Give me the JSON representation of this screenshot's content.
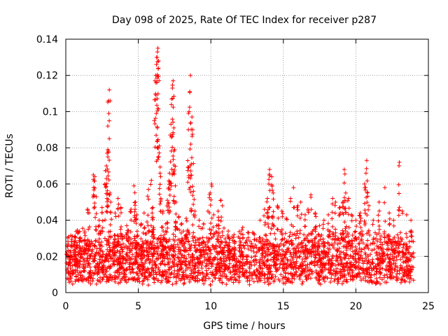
{
  "chart_data": {
    "type": "scatter",
    "title": "Day 098 of 2025, Rate Of TEC Index for receiver p287",
    "xlabel": "GPS time / hours",
    "ylabel": "ROTI / TECUs",
    "xlim": [
      0,
      25
    ],
    "ylim": [
      0,
      0.14
    ],
    "xticks": [
      0,
      5,
      10,
      15,
      20,
      25
    ],
    "xtick_labels": [
      "0",
      "5",
      "10",
      "15",
      "20",
      "25"
    ],
    "yticks": [
      0,
      0.02,
      0.04,
      0.06,
      0.08,
      0.1,
      0.12,
      0.14
    ],
    "ytick_labels": [
      "0",
      "0.02",
      "0.04",
      "0.06",
      "0.08",
      "0.1",
      "0.12",
      "0.14"
    ],
    "grid": true,
    "marker": "+",
    "color": "#ff0000",
    "data_range_hours": [
      0,
      24
    ],
    "series": [
      {
        "name": "ROTI",
        "baseline_band": [
          0.004,
          0.024
        ],
        "points": [
          [
            0.3,
            0.022
          ],
          [
            0.6,
            0.028
          ],
          [
            1.0,
            0.03
          ],
          [
            1.3,
            0.034
          ],
          [
            1.5,
            0.046
          ],
          [
            1.6,
            0.044
          ],
          [
            1.9,
            0.065
          ],
          [
            2.0,
            0.064
          ],
          [
            2.1,
            0.053
          ],
          [
            2.3,
            0.04
          ],
          [
            2.5,
            0.047
          ],
          [
            2.7,
            0.06
          ],
          [
            2.8,
            0.07
          ],
          [
            2.8,
            0.063
          ],
          [
            2.85,
            0.077
          ],
          [
            2.9,
            0.079
          ],
          [
            2.9,
            0.092
          ],
          [
            2.95,
            0.106
          ],
          [
            3.0,
            0.112
          ],
          [
            3.05,
            0.055
          ],
          [
            3.1,
            0.05
          ],
          [
            3.4,
            0.044
          ],
          [
            3.6,
            0.052
          ],
          [
            3.8,
            0.047
          ],
          [
            4.2,
            0.037
          ],
          [
            4.5,
            0.046
          ],
          [
            4.7,
            0.059
          ],
          [
            4.8,
            0.05
          ],
          [
            4.9,
            0.043
          ],
          [
            5.2,
            0.038
          ],
          [
            5.4,
            0.044
          ],
          [
            5.6,
            0.039
          ],
          [
            5.7,
            0.057
          ],
          [
            5.9,
            0.062
          ],
          [
            6.0,
            0.047
          ],
          [
            6.05,
            0.036
          ],
          [
            6.15,
            0.117
          ],
          [
            6.2,
            0.12
          ],
          [
            6.25,
            0.126
          ],
          [
            6.3,
            0.13
          ],
          [
            6.32,
            0.133
          ],
          [
            6.35,
            0.135
          ],
          [
            6.38,
            0.124
          ],
          [
            6.4,
            0.128
          ],
          [
            6.45,
            0.081
          ],
          [
            6.5,
            0.066
          ],
          [
            6.55,
            0.052
          ],
          [
            6.7,
            0.045
          ],
          [
            6.9,
            0.038
          ],
          [
            7.0,
            0.051
          ],
          [
            7.1,
            0.058
          ],
          [
            7.15,
            0.066
          ],
          [
            7.2,
            0.087
          ],
          [
            7.25,
            0.093
          ],
          [
            7.3,
            0.107
          ],
          [
            7.35,
            0.113
          ],
          [
            7.4,
            0.117
          ],
          [
            7.45,
            0.091
          ],
          [
            7.5,
            0.079
          ],
          [
            7.55,
            0.059
          ],
          [
            7.6,
            0.05
          ],
          [
            7.8,
            0.042
          ],
          [
            8.0,
            0.038
          ],
          [
            8.3,
            0.041
          ],
          [
            8.45,
            0.09
          ],
          [
            8.5,
            0.1
          ],
          [
            8.55,
            0.111
          ],
          [
            8.6,
            0.12
          ],
          [
            8.62,
            0.082
          ],
          [
            8.65,
            0.071
          ],
          [
            8.7,
            0.097
          ],
          [
            8.75,
            0.09
          ],
          [
            8.8,
            0.056
          ],
          [
            8.9,
            0.045
          ],
          [
            9.2,
            0.04
          ],
          [
            9.5,
            0.038
          ],
          [
            9.8,
            0.045
          ],
          [
            9.95,
            0.055
          ],
          [
            10.05,
            0.06
          ],
          [
            10.2,
            0.043
          ],
          [
            10.4,
            0.037
          ],
          [
            10.5,
            0.045
          ],
          [
            10.7,
            0.051
          ],
          [
            10.8,
            0.048
          ],
          [
            11.2,
            0.034
          ],
          [
            11.6,
            0.032
          ],
          [
            12.0,
            0.03
          ],
          [
            12.2,
            0.036
          ],
          [
            12.6,
            0.033
          ],
          [
            13.0,
            0.032
          ],
          [
            13.4,
            0.04
          ],
          [
            13.7,
            0.046
          ],
          [
            13.9,
            0.052
          ],
          [
            14.0,
            0.06
          ],
          [
            14.05,
            0.068
          ],
          [
            14.2,
            0.064
          ],
          [
            14.3,
            0.055
          ],
          [
            14.6,
            0.048
          ],
          [
            14.9,
            0.045
          ],
          [
            15.2,
            0.041
          ],
          [
            15.5,
            0.052
          ],
          [
            15.7,
            0.058
          ],
          [
            16.0,
            0.048
          ],
          [
            16.2,
            0.05
          ],
          [
            16.5,
            0.043
          ],
          [
            16.7,
            0.046
          ],
          [
            16.9,
            0.054
          ],
          [
            17.2,
            0.044
          ],
          [
            17.5,
            0.037
          ],
          [
            17.8,
            0.04
          ],
          [
            18.1,
            0.043
          ],
          [
            18.4,
            0.052
          ],
          [
            18.6,
            0.05
          ],
          [
            18.9,
            0.047
          ],
          [
            19.1,
            0.05
          ],
          [
            19.2,
            0.068
          ],
          [
            19.3,
            0.055
          ],
          [
            19.5,
            0.052
          ],
          [
            19.7,
            0.043
          ],
          [
            20.0,
            0.04
          ],
          [
            20.3,
            0.044
          ],
          [
            20.6,
            0.06
          ],
          [
            20.7,
            0.066
          ],
          [
            20.75,
            0.073
          ],
          [
            20.8,
            0.055
          ],
          [
            20.9,
            0.048
          ],
          [
            21.2,
            0.04
          ],
          [
            21.6,
            0.05
          ],
          [
            22.0,
            0.058
          ],
          [
            22.3,
            0.044
          ],
          [
            22.6,
            0.04
          ],
          [
            23.0,
            0.072
          ],
          [
            23.2,
            0.045
          ],
          [
            23.5,
            0.043
          ],
          [
            23.8,
            0.04
          ]
        ]
      }
    ]
  }
}
